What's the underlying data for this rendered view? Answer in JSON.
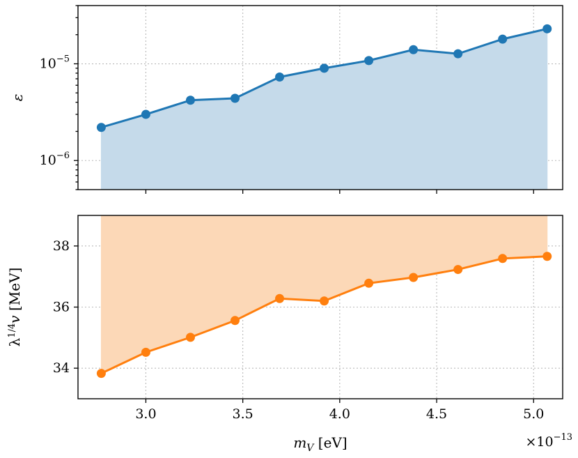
{
  "figure": {
    "xlabel": "m_V [eV]",
    "x_offset_text": "×10^-13",
    "shared_x": {
      "ticks": [
        3.0,
        3.5,
        4.0,
        4.5,
        5.0
      ],
      "tick_labels": [
        "3.0",
        "3.5",
        "4.0",
        "4.5",
        "5.0"
      ]
    }
  },
  "chart_data": [
    {
      "type": "line",
      "ylabel": "ε",
      "yscale": "log",
      "ylim": [
        5e-07,
        4e-05
      ],
      "yticks": [
        1e-06,
        1e-05
      ],
      "ytick_labels": [
        "10^-6",
        "10^-5"
      ],
      "xlim": [
        2.65,
        5.15
      ],
      "grid": true,
      "fill": "below",
      "color": "#1f77b4",
      "fill_color": "#c5daea",
      "x": [
        2.77,
        3.0,
        3.23,
        3.46,
        3.69,
        3.92,
        4.15,
        4.38,
        4.61,
        4.84,
        5.07
      ],
      "y": [
        2.2e-06,
        3e-06,
        4.2e-06,
        4.4e-06,
        7.3e-06,
        9e-06,
        1.08e-05,
        1.4e-05,
        1.27e-05,
        1.8e-05,
        2.3e-05
      ]
    },
    {
      "type": "line",
      "ylabel": "λ^1/4 v [MeV]",
      "yscale": "linear",
      "ylim": [
        33.0,
        39.0
      ],
      "yticks": [
        34,
        36,
        38
      ],
      "ytick_labels": [
        "34",
        "36",
        "38"
      ],
      "xlim": [
        2.65,
        5.15
      ],
      "grid": true,
      "fill": "above",
      "color": "#ff7f0e",
      "fill_color": "#fcd8b7",
      "x": [
        2.77,
        3.0,
        3.23,
        3.46,
        3.69,
        3.92,
        4.15,
        4.38,
        4.61,
        4.84,
        5.07
      ],
      "y": [
        33.83,
        34.52,
        35.01,
        35.56,
        36.28,
        36.2,
        36.78,
        36.97,
        37.23,
        37.59,
        37.66
      ]
    }
  ]
}
